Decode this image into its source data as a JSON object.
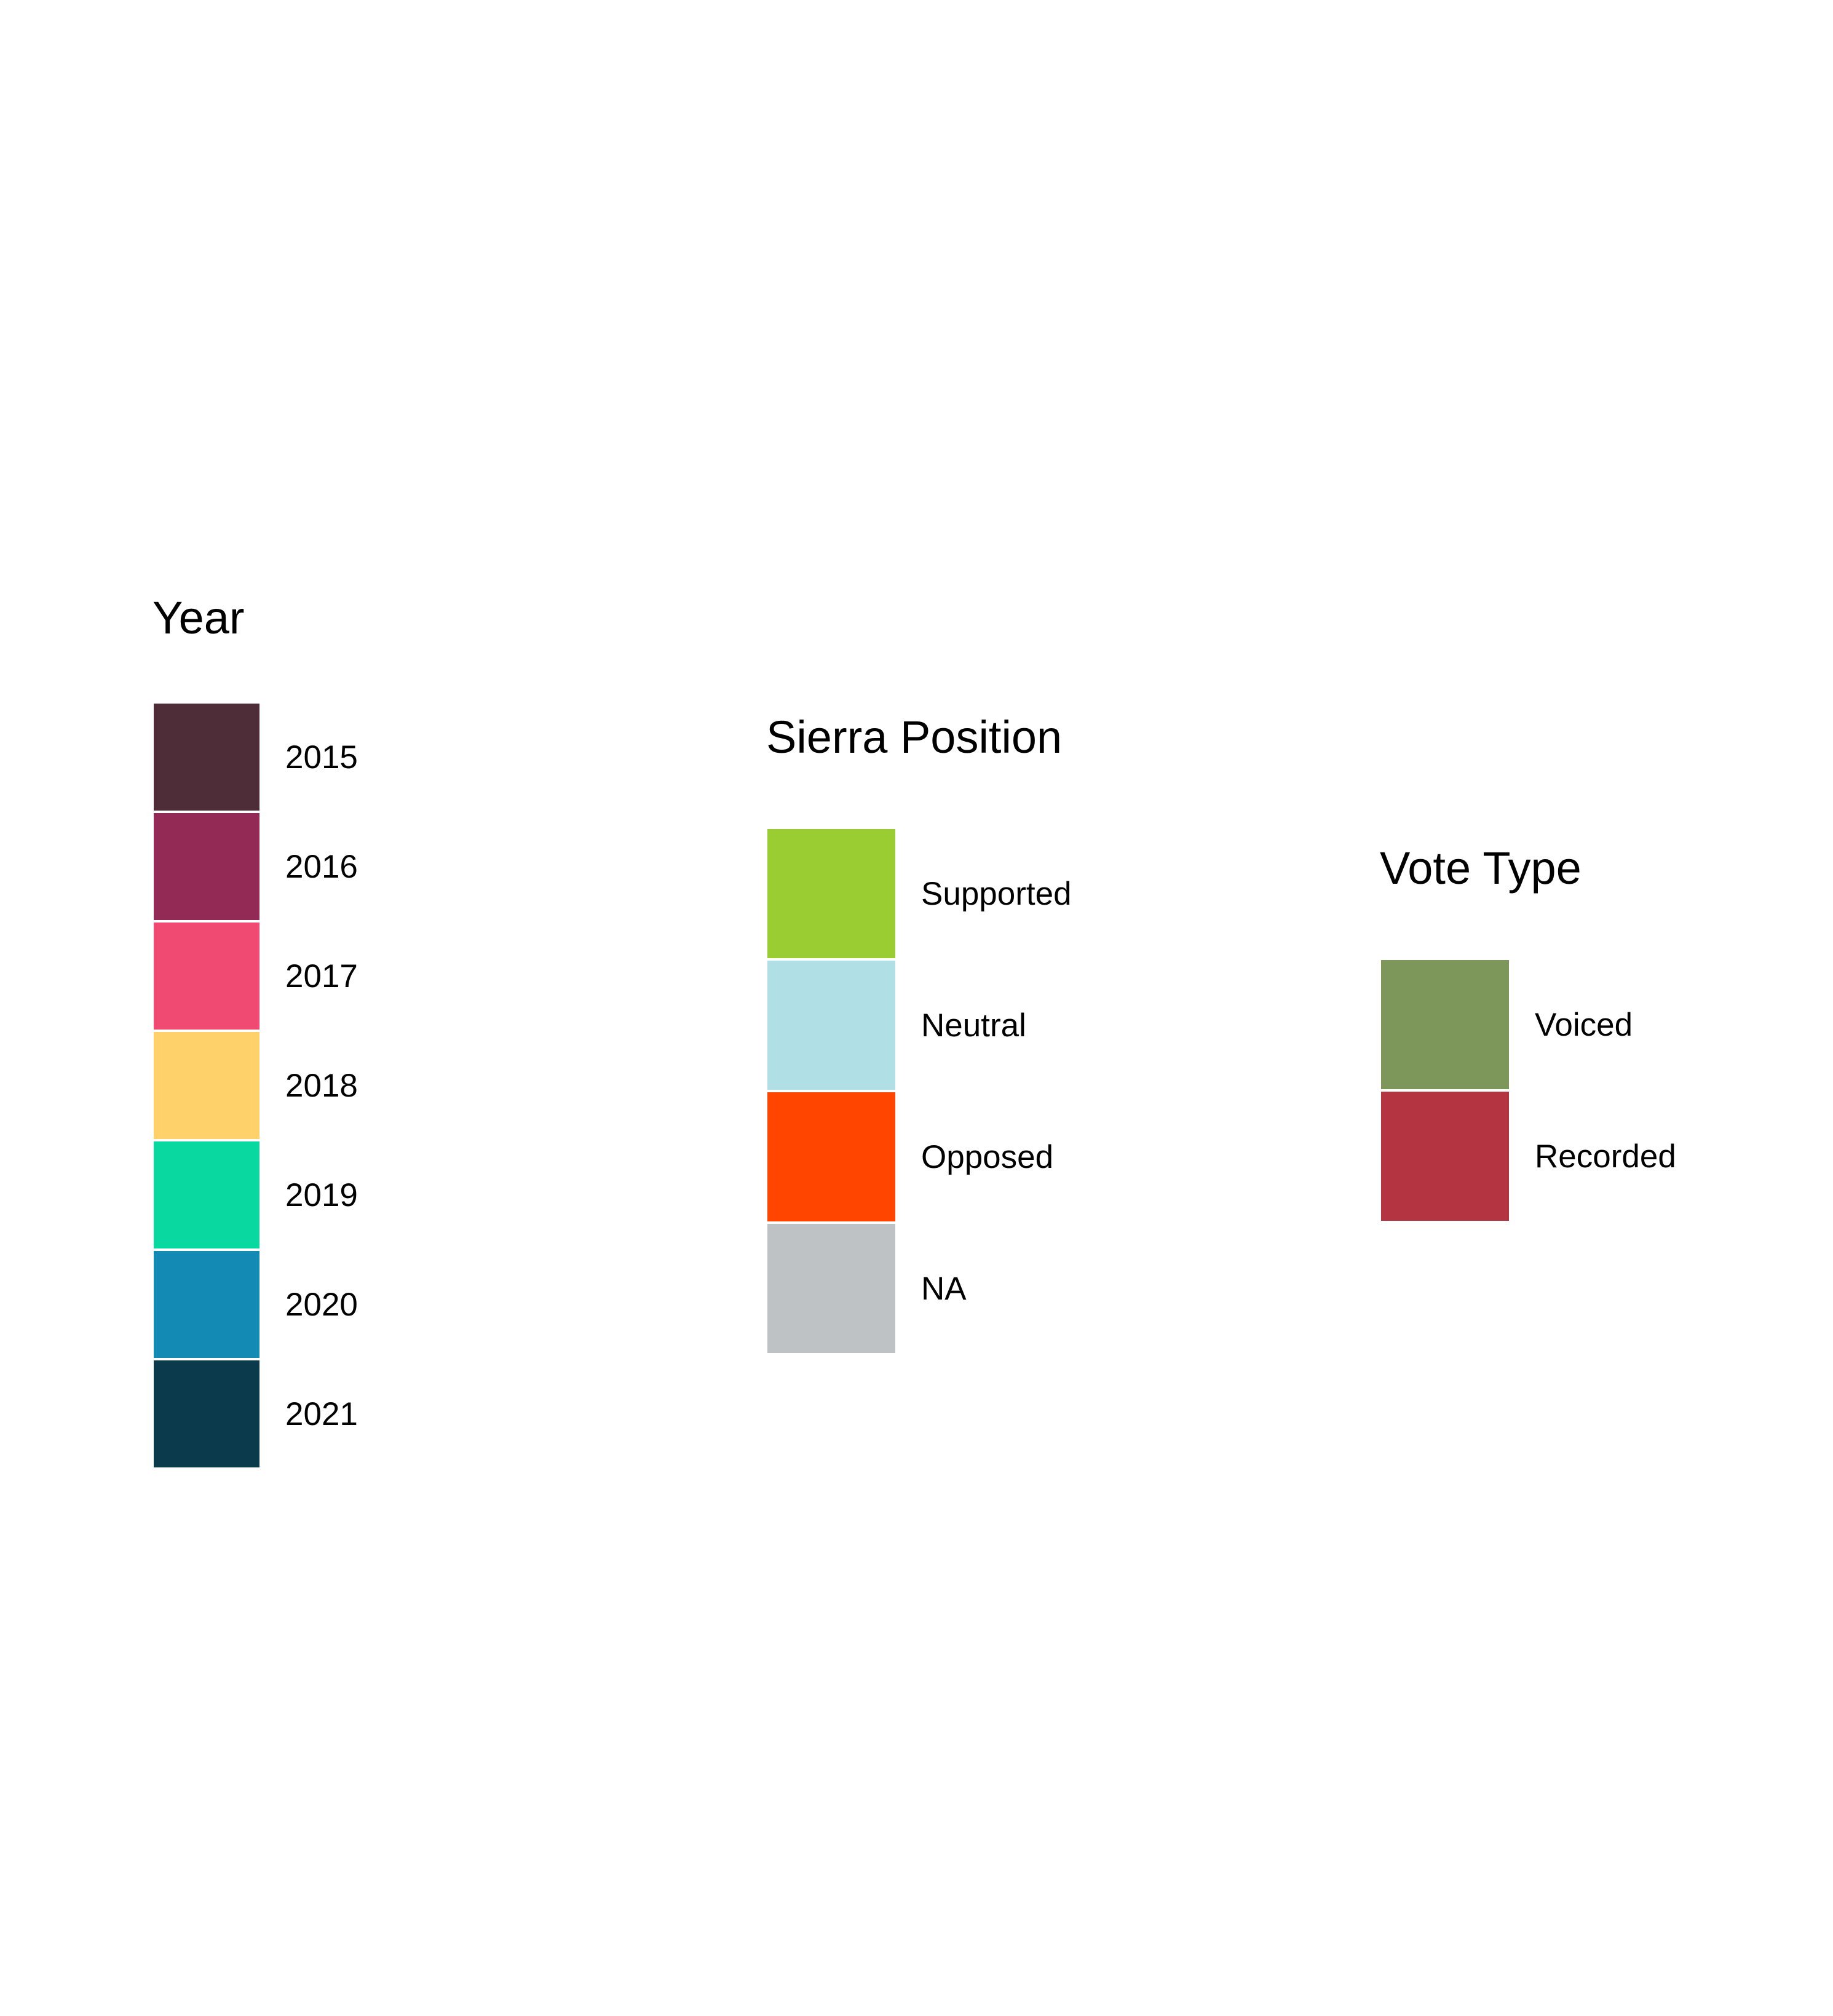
{
  "chart_data": {
    "type": "legend",
    "legends": [
      {
        "id": "year",
        "title": "Year",
        "entries": [
          {
            "label": "2015",
            "color": "#4E2C38"
          },
          {
            "label": "2016",
            "color": "#922A55"
          },
          {
            "label": "2017",
            "color": "#F04A72"
          },
          {
            "label": "2018",
            "color": "#FED16A"
          },
          {
            "label": "2019",
            "color": "#09D8A1"
          },
          {
            "label": "2020",
            "color": "#128AB4"
          },
          {
            "label": "2021",
            "color": "#0A3A4C"
          }
        ]
      },
      {
        "id": "sierra",
        "title": "Sierra Position",
        "entries": [
          {
            "label": "Supported",
            "color": "#9ACD32"
          },
          {
            "label": "Neutral",
            "color": "#B0E0E6"
          },
          {
            "label": "Opposed",
            "color": "#FF4500"
          },
          {
            "label": "NA",
            "color": "#BEC2C4"
          }
        ]
      },
      {
        "id": "vote",
        "title": "Vote Type",
        "entries": [
          {
            "label": "Voiced",
            "color": "#7D975B"
          },
          {
            "label": "Recorded",
            "color": "#B43441"
          }
        ]
      }
    ]
  }
}
